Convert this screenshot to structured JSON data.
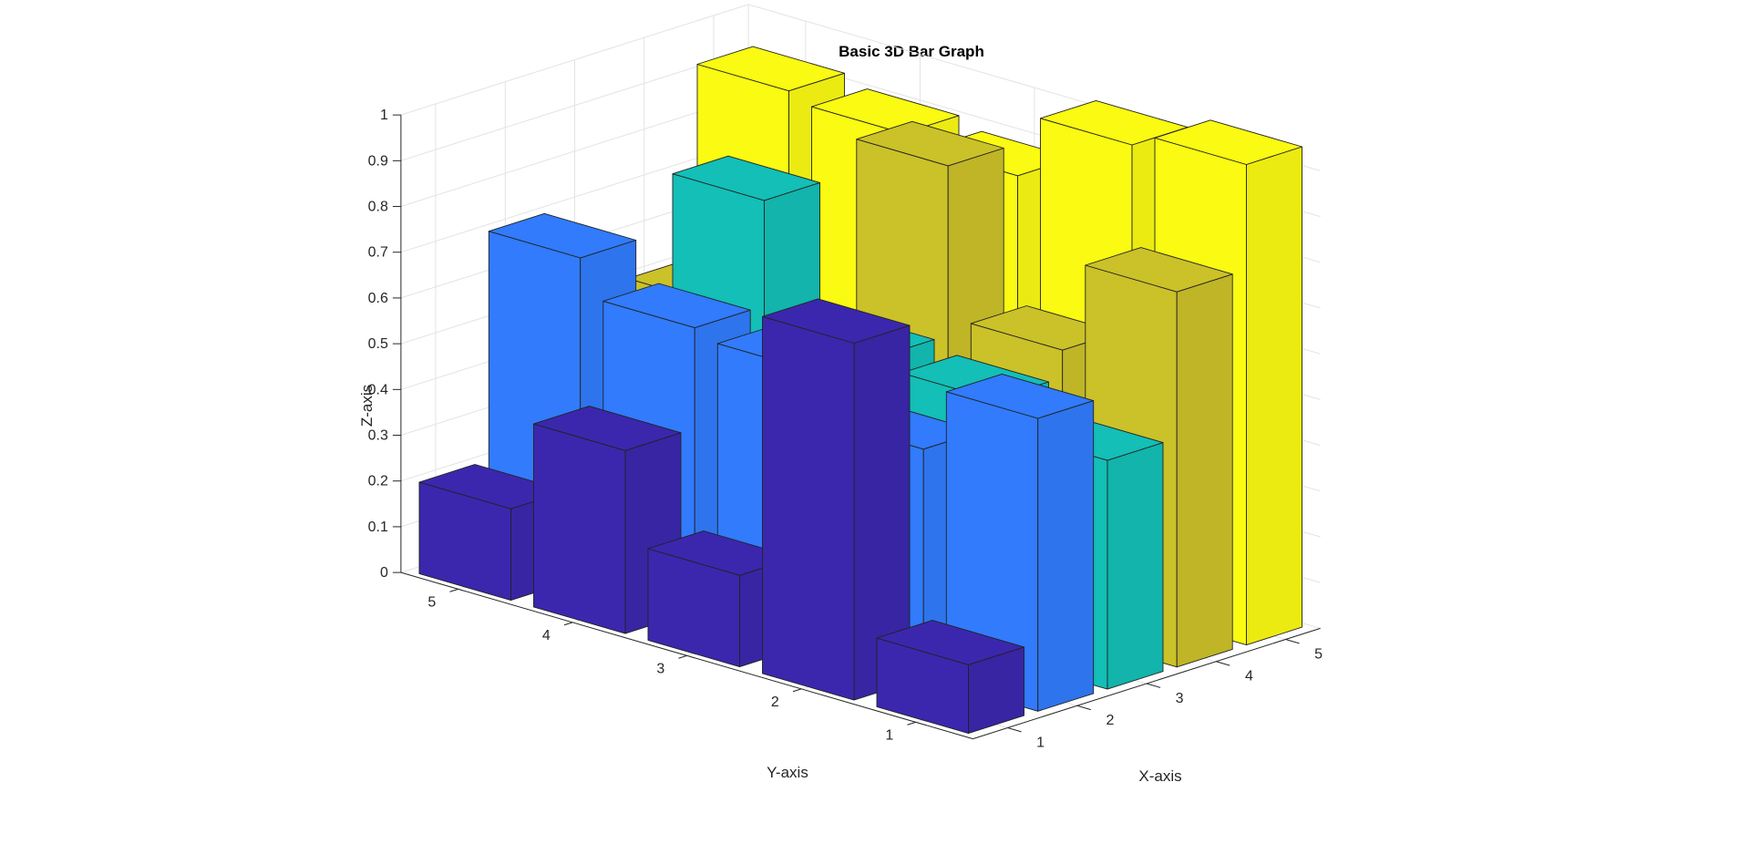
{
  "chart_data": {
    "type": "bar3",
    "title": "Basic 3D Bar Graph",
    "xlabel": "X-axis",
    "ylabel": "Y-axis",
    "zlabel": "Z-axis",
    "x_ticks": [
      "1",
      "2",
      "3",
      "4",
      "5"
    ],
    "y_ticks": [
      "1",
      "2",
      "3",
      "4",
      "5"
    ],
    "z_ticks": [
      "0",
      "0.1",
      "0.2",
      "0.3",
      "0.4",
      "0.5",
      "0.6",
      "0.7",
      "0.8",
      "0.9",
      "1"
    ],
    "zlim": [
      0,
      1
    ],
    "grid": true,
    "column_colors": [
      "#3b27ad",
      "#317bfc",
      "#13bfb6",
      "#cbc129",
      "#fafa12"
    ],
    "values": [
      [
        0.15,
        0.64,
        0.5,
        0.82,
        1.05
      ],
      [
        0.78,
        0.5,
        0.56,
        0.62,
        1.02
      ],
      [
        0.2,
        0.6,
        0.58,
        0.95,
        0.88
      ],
      [
        0.4,
        0.62,
        0.85,
        0.38,
        0.9
      ],
      [
        0.2,
        0.7,
        0.2,
        0.5,
        0.92
      ]
    ]
  }
}
